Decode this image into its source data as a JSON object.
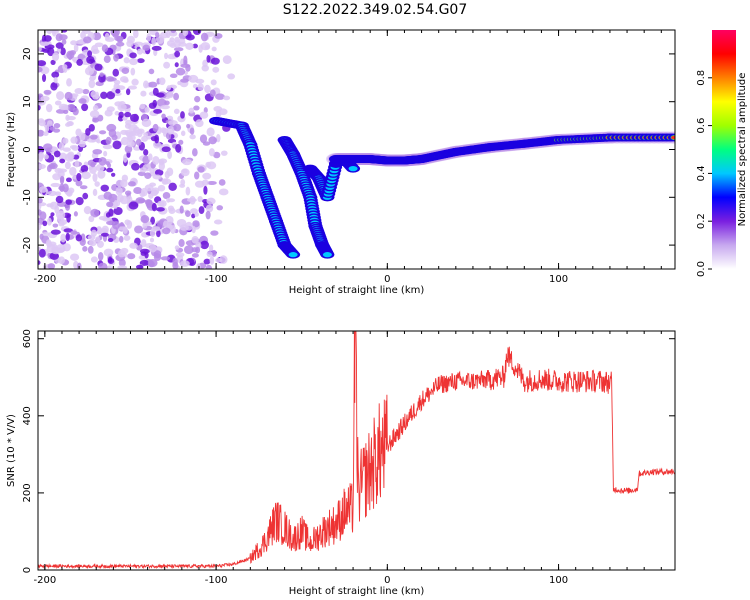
{
  "title": "S122.2022.349.02.54.G07",
  "chart_data": [
    {
      "type": "heatmap",
      "xlabel": "Height of straight line (km)",
      "ylabel": "Frequency (Hz)",
      "xlim": [
        -204,
        168
      ],
      "ylim": [
        -25,
        25
      ],
      "xticks": [
        -200,
        -100,
        0,
        100
      ],
      "yticks": [
        -20,
        -10,
        0,
        10,
        20
      ],
      "colorbar": {
        "label": "Normalized spectral amplitude",
        "range": [
          0,
          1
        ],
        "ticks": [
          0.0,
          0.2,
          0.4,
          0.6,
          0.8
        ],
        "colors": [
          "#ffffff",
          "#c7a8ef",
          "#7a1fe0",
          "#0000ff",
          "#00c8ff",
          "#00ff80",
          "#a0ff00",
          "#ffff00",
          "#ff8000",
          "#ff0000",
          "#ff0060"
        ]
      },
      "noise_region_x": [
        -204,
        -90
      ],
      "ridges": [
        {
          "name": "main",
          "points": [
            [
              -100,
              6
            ],
            [
              -85,
              5
            ],
            [
              -80,
              1
            ],
            [
              -75,
              -5
            ],
            [
              -70,
              -10
            ],
            [
              -65,
              -15
            ],
            [
              -60,
              -20
            ],
            [
              -55,
              -22
            ]
          ]
        },
        {
          "name": "second",
          "points": [
            [
              -60,
              2
            ],
            [
              -55,
              -1
            ],
            [
              -50,
              -5
            ],
            [
              -45,
              -10
            ],
            [
              -42,
              -16
            ],
            [
              -38,
              -20
            ],
            [
              -35,
              -22
            ]
          ]
        },
        {
          "name": "third",
          "points": [
            [
              -45,
              -4
            ],
            [
              -40,
              -6
            ],
            [
              -35,
              -10
            ],
            [
              -30,
              -3
            ],
            [
              -25,
              -2
            ],
            [
              -20,
              -4
            ]
          ]
        },
        {
          "name": "tone",
          "points": [
            [
              -30,
              -2
            ],
            [
              -20,
              -2
            ],
            [
              -10,
              -2
            ],
            [
              0,
              -2.3
            ],
            [
              10,
              -2.3
            ],
            [
              20,
              -2
            ],
            [
              40,
              -0.5
            ],
            [
              60,
              0.5
            ],
            [
              80,
              1.2
            ],
            [
              100,
              2
            ],
            [
              130,
              2.5
            ],
            [
              168,
              2.5
            ]
          ]
        }
      ]
    },
    {
      "type": "line",
      "xlabel": "Height of straight line (km)",
      "ylabel": "SNR (10 * V/V)",
      "xlim": [
        -204,
        168
      ],
      "ylim": [
        0,
        620
      ],
      "xticks": [
        -200,
        -100,
        0,
        100
      ],
      "yticks": [
        0,
        200,
        400,
        600
      ],
      "color": "#ee3333",
      "series": [
        {
          "x": [
            -204,
            -150,
            -100,
            -90,
            -80,
            -72,
            -65,
            -60,
            -55,
            -50,
            -45,
            -40,
            -35,
            -30,
            -25,
            -20,
            -19,
            -17,
            -15,
            -10,
            -5,
            0,
            5,
            10,
            20,
            30,
            40,
            50,
            60,
            68,
            70,
            80,
            90,
            100,
            110,
            125,
            131,
            132,
            140,
            146,
            147,
            155,
            168
          ],
          "y": [
            10,
            10,
            10,
            15,
            30,
            70,
            130,
            110,
            80,
            100,
            70,
            90,
            110,
            120,
            150,
            160,
            620,
            200,
            220,
            260,
            300,
            320,
            350,
            380,
            440,
            480,
            490,
            490,
            495,
            500,
            560,
            490,
            495,
            490,
            490,
            490,
            485,
            210,
            205,
            210,
            250,
            255,
            255
          ]
        }
      ]
    }
  ]
}
